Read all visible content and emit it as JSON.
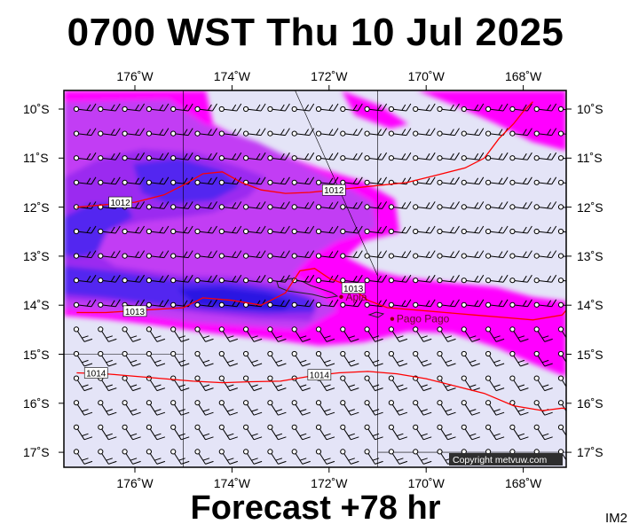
{
  "title": "0700 WST Thu 10 Jul 2025",
  "footer": "Forecast +78 hr",
  "product_code": "IM2",
  "copyright": "Copyright metvuw.com",
  "longitudes": [
    {
      "lon": 176,
      "label": "176˚W"
    },
    {
      "lon": 174,
      "label": "174˚W"
    },
    {
      "lon": 172,
      "label": "172˚W"
    },
    {
      "lon": 170,
      "label": "170˚W"
    },
    {
      "lon": 168,
      "label": "168˚W"
    }
  ],
  "latitudes": [
    {
      "lat": 10,
      "label": "10˚S"
    },
    {
      "lat": 11,
      "label": "11˚S"
    },
    {
      "lat": 12,
      "label": "12˚S"
    },
    {
      "lat": 13,
      "label": "13˚S"
    },
    {
      "lat": 14,
      "label": "14˚S"
    },
    {
      "lat": 15,
      "label": "15˚S"
    },
    {
      "lat": 16,
      "label": "16˚S"
    },
    {
      "lat": 17,
      "label": "17˚S"
    }
  ],
  "places": [
    {
      "name": "Apia",
      "lon": 171.75,
      "lat": 13.83
    },
    {
      "name": "Pago Pago",
      "lon": 170.7,
      "lat": 14.28
    }
  ],
  "isobars": [
    {
      "value": "1012",
      "points": [
        [
          177.2,
          12.0
        ],
        [
          176.6,
          11.95
        ],
        [
          176.0,
          11.9
        ],
        [
          175.4,
          11.75
        ],
        [
          175.0,
          11.55
        ],
        [
          174.6,
          11.32
        ],
        [
          174.2,
          11.28
        ],
        [
          173.8,
          11.5
        ],
        [
          173.4,
          11.65
        ],
        [
          172.9,
          11.72
        ],
        [
          172.4,
          11.7
        ],
        [
          171.9,
          11.65
        ],
        [
          171.4,
          11.6
        ],
        [
          170.9,
          11.55
        ],
        [
          170.4,
          11.5
        ],
        [
          169.8,
          11.35
        ],
        [
          169.2,
          11.2
        ],
        [
          168.8,
          11.0
        ],
        [
          168.5,
          10.6
        ],
        [
          168.2,
          10.3
        ],
        [
          168.0,
          10.05
        ],
        [
          167.8,
          9.85
        ]
      ],
      "labels": [
        {
          "lon": 176.3,
          "lat": 11.9
        },
        {
          "lon": 171.9,
          "lat": 11.65
        }
      ]
    },
    {
      "value": "1013",
      "points": [
        [
          177.2,
          14.15
        ],
        [
          176.6,
          14.15
        ],
        [
          175.8,
          14.1
        ],
        [
          175.0,
          14.05
        ],
        [
          174.6,
          13.85
        ],
        [
          174.0,
          13.9
        ],
        [
          173.4,
          14.0
        ],
        [
          172.9,
          13.75
        ],
        [
          172.6,
          13.3
        ],
        [
          172.3,
          13.25
        ],
        [
          172.0,
          13.45
        ],
        [
          171.6,
          13.6
        ],
        [
          171.2,
          13.9
        ],
        [
          170.8,
          14.05
        ],
        [
          170.2,
          14.1
        ],
        [
          169.6,
          14.15
        ],
        [
          169.0,
          14.2
        ],
        [
          168.4,
          14.25
        ],
        [
          167.8,
          14.3
        ],
        [
          167.2,
          14.2
        ],
        [
          166.9,
          13.85
        ]
      ],
      "labels": [
        {
          "lon": 176.0,
          "lat": 14.12
        },
        {
          "lon": 171.5,
          "lat": 13.65
        }
      ]
    },
    {
      "value": "1014",
      "points": [
        [
          177.2,
          15.38
        ],
        [
          176.6,
          15.4
        ],
        [
          176.0,
          15.45
        ],
        [
          175.4,
          15.5
        ],
        [
          174.8,
          15.55
        ],
        [
          174.2,
          15.58
        ],
        [
          173.6,
          15.56
        ],
        [
          173.0,
          15.55
        ],
        [
          172.4,
          15.45
        ],
        [
          171.8,
          15.38
        ],
        [
          171.2,
          15.35
        ],
        [
          170.6,
          15.4
        ],
        [
          170.0,
          15.5
        ],
        [
          169.4,
          15.65
        ],
        [
          168.8,
          15.8
        ],
        [
          168.2,
          16.05
        ],
        [
          167.6,
          16.15
        ],
        [
          167.2,
          16.1
        ],
        [
          166.9,
          16.15
        ]
      ],
      "labels": [
        {
          "lon": 176.8,
          "lat": 15.38
        },
        {
          "lon": 172.2,
          "lat": 15.42
        }
      ]
    }
  ],
  "colors": {
    "background": "#e4e4f7",
    "magenta": "#ff00ff",
    "purple": "#c23cf4",
    "violet": "#9b2cf0",
    "blue": "#5228f0",
    "deep_blue": "#2a18e2",
    "isobar": "#ff0000",
    "land": "#6a6a9a"
  }
}
